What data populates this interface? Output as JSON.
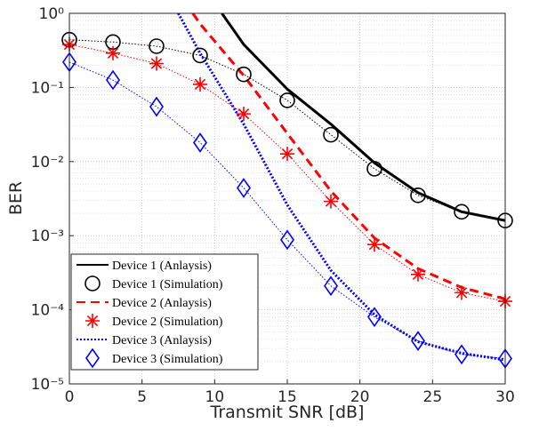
{
  "chart_data": {
    "type": "line",
    "xlabel": "Transmit SNR [dB]",
    "ylabel": "BER",
    "xlim": [
      0,
      30
    ],
    "xticks": [
      0,
      5,
      10,
      15,
      20,
      25,
      30
    ],
    "ylim": [
      1e-05,
      1
    ],
    "yscale": "log",
    "yticks": [
      {
        "value": 1e-05,
        "label": "10⁻⁵"
      },
      {
        "value": 0.0001,
        "label": "10⁻⁴"
      },
      {
        "value": 0.001,
        "label": "10⁻³"
      },
      {
        "value": 0.01,
        "label": "10⁻²"
      },
      {
        "value": 0.1,
        "label": "10⁻¹"
      },
      {
        "value": 1,
        "label": "10⁰"
      }
    ],
    "grid": true,
    "legend_position": "lower left",
    "series": [
      {
        "name": "Device 1 (Anlaysis)",
        "color": "#000000",
        "line": "solid",
        "marker": "none",
        "x": [
          10.5,
          12,
          15,
          18,
          21,
          24,
          27,
          30
        ],
        "values": [
          1,
          0.38,
          0.095,
          0.032,
          0.0096,
          0.0038,
          0.0021,
          0.0016
        ]
      },
      {
        "name": "Device 1 (Simulation)",
        "color": "#000000",
        "line": "dotted",
        "marker": "circle",
        "x": [
          0,
          3,
          6,
          9,
          12,
          15,
          18,
          21,
          24,
          27,
          30
        ],
        "values": [
          0.44,
          0.41,
          0.36,
          0.27,
          0.15,
          0.067,
          0.023,
          0.008,
          0.0035,
          0.0021,
          0.0016
        ]
      },
      {
        "name": "Device 2 (Anlaysis)",
        "color": "#ff0000",
        "line": "dashed",
        "marker": "none",
        "x": [
          8.5,
          9,
          12,
          15,
          18,
          21,
          24,
          27,
          30
        ],
        "values": [
          1,
          0.72,
          0.145,
          0.024,
          0.004,
          0.00093,
          0.00036,
          0.0002,
          0.00014
        ]
      },
      {
        "name": "Device 2 (Simulation)",
        "color": "#ff0000",
        "line": "dotted",
        "marker": "star",
        "x": [
          0,
          3,
          6,
          9,
          12,
          15,
          18,
          21,
          24,
          27,
          30
        ],
        "values": [
          0.38,
          0.29,
          0.21,
          0.11,
          0.044,
          0.0127,
          0.0029,
          0.00076,
          0.0003,
          0.00017,
          0.00013
        ]
      },
      {
        "name": "Device 3 (Anlaysis)",
        "color": "#0000ff",
        "line": "dotted-thick",
        "marker": "none",
        "x": [
          7.5,
          9,
          12,
          15,
          18,
          21,
          24,
          27,
          30
        ],
        "values": [
          1,
          0.29,
          0.032,
          0.0026,
          0.00034,
          8.6e-05,
          3.7e-05,
          2.6e-05,
          2.1e-05
        ]
      },
      {
        "name": "Device 3 (Simulation)",
        "color": "#0000ff",
        "line": "dotted",
        "marker": "diamond",
        "x": [
          0,
          3,
          6,
          9,
          12,
          15,
          18,
          21,
          24,
          27,
          30
        ],
        "values": [
          0.22,
          0.126,
          0.055,
          0.018,
          0.0044,
          0.00088,
          0.00021,
          8e-05,
          3.8e-05,
          2.5e-05,
          2.2e-05
        ]
      }
    ]
  }
}
